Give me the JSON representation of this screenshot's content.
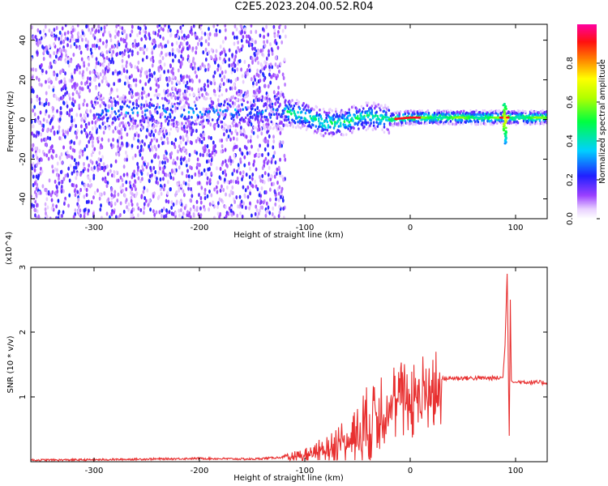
{
  "title": "C2E5.2023.204.00.52.R04",
  "colors": {
    "snr_line": "#e83030",
    "axis": "#000000"
  },
  "chart_data": [
    {
      "type": "heatmap",
      "title": "C2E5.2023.204.00.52.R04",
      "xlabel": "Height of straight line (km)",
      "ylabel": "Frequency (Hz)",
      "xlim": [
        -360,
        130
      ],
      "ylim": [
        -50,
        48
      ],
      "x_ticks": [
        -300,
        -200,
        -100,
        0,
        100
      ],
      "y_ticks": [
        -40,
        -20,
        0,
        20,
        40
      ],
      "colorbar": {
        "label": "Normalized spectral amplitude",
        "range": [
          0,
          1
        ],
        "ticks": [
          0.0,
          0.2,
          0.4,
          0.6,
          0.8
        ],
        "colormap": "white-purple-blue-cyan-green-yellow-orange-red-magenta"
      },
      "ridge": [
        {
          "x": -120,
          "freq": 4
        },
        {
          "x": -100,
          "freq": 2
        },
        {
          "x": -80,
          "freq": -2
        },
        {
          "x": -60,
          "freq": -1
        },
        {
          "x": -40,
          "freq": 2
        },
        {
          "x": -20,
          "freq": 0
        },
        {
          "x": 0,
          "freq": 1
        },
        {
          "x": 50,
          "freq": 1
        },
        {
          "x": 90,
          "freq": 1
        },
        {
          "x": 130,
          "freq": 1
        }
      ]
    },
    {
      "type": "line",
      "xlabel": "Height of straight line (km)",
      "ylabel": "SNR (10 * v/v)",
      "y_multiplier": "(x10^4)",
      "xlim": [
        -360,
        130
      ],
      "ylim": [
        0,
        30000
      ],
      "x_ticks": [
        -300,
        -200,
        -100,
        0,
        100
      ],
      "y_ticks": [
        1,
        2,
        3
      ],
      "series": [
        {
          "x": [
            -360,
            -300,
            -200,
            -150,
            -120,
            -100,
            -80,
            -60,
            -40,
            -30,
            -20,
            -10,
            0,
            10,
            20,
            30,
            40,
            60,
            80,
            88,
            90,
            92,
            94,
            95,
            96,
            98,
            100,
            110,
            120,
            130
          ],
          "y": [
            250,
            300,
            500,
            400,
            700,
            1300,
            2500,
            4500,
            7500,
            9500,
            10500,
            11000,
            11500,
            12000,
            12500,
            12800,
            12900,
            12900,
            12900,
            13000,
            18000,
            29000,
            4000,
            25000,
            12500,
            12200,
            12300,
            12300,
            12200,
            12200
          ]
        }
      ]
    }
  ]
}
